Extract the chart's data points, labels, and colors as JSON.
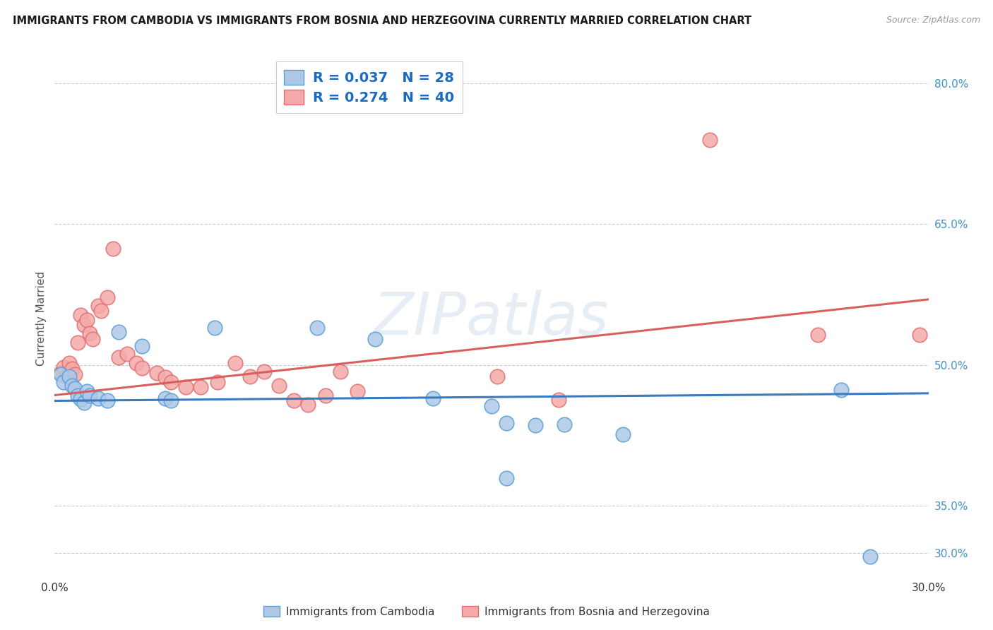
{
  "title": "IMMIGRANTS FROM CAMBODIA VS IMMIGRANTS FROM BOSNIA AND HERZEGOVINA CURRENTLY MARRIED CORRELATION CHART",
  "source": "Source: ZipAtlas.com",
  "ylabel": "Currently Married",
  "xlim": [
    0.0,
    0.3
  ],
  "ylim": [
    0.275,
    0.825
  ],
  "xticks": [
    0.0,
    0.05,
    0.1,
    0.15,
    0.2,
    0.25,
    0.3
  ],
  "xticklabels": [
    "0.0%",
    "",
    "",
    "",
    "",
    "",
    "30.0%"
  ],
  "yticks_right": [
    0.8,
    0.65,
    0.5,
    0.35,
    0.3
  ],
  "ytick_labels_right": [
    "80.0%",
    "65.0%",
    "50.0%",
    "35.0%",
    "30.0%"
  ],
  "grid_color": "#cccccc",
  "watermark": "ZIPatlas",
  "legend_label1": "Immigrants from Cambodia",
  "legend_label2": "Immigrants from Bosnia and Herzegovina",
  "blue_color": "#aec8e8",
  "pink_color": "#f4aaaa",
  "blue_edge_color": "#5a9fd4",
  "pink_edge_color": "#e07070",
  "blue_line_color": "#3a7abf",
  "pink_line_color": "#d95f5f",
  "scatter_blue": [
    [
      0.002,
      0.49
    ],
    [
      0.003,
      0.482
    ],
    [
      0.005,
      0.488
    ],
    [
      0.006,
      0.478
    ],
    [
      0.007,
      0.475
    ],
    [
      0.008,
      0.468
    ],
    [
      0.009,
      0.464
    ],
    [
      0.01,
      0.46
    ],
    [
      0.011,
      0.472
    ],
    [
      0.012,
      0.468
    ],
    [
      0.015,
      0.465
    ],
    [
      0.018,
      0.462
    ],
    [
      0.022,
      0.535
    ],
    [
      0.03,
      0.52
    ],
    [
      0.038,
      0.465
    ],
    [
      0.04,
      0.462
    ],
    [
      0.055,
      0.54
    ],
    [
      0.09,
      0.54
    ],
    [
      0.11,
      0.528
    ],
    [
      0.13,
      0.465
    ],
    [
      0.15,
      0.456
    ],
    [
      0.155,
      0.438
    ],
    [
      0.165,
      0.436
    ],
    [
      0.175,
      0.437
    ],
    [
      0.195,
      0.426
    ],
    [
      0.27,
      0.474
    ],
    [
      0.28,
      0.296
    ],
    [
      0.155,
      0.38
    ]
  ],
  "scatter_pink": [
    [
      0.002,
      0.492
    ],
    [
      0.003,
      0.498
    ],
    [
      0.004,
      0.488
    ],
    [
      0.005,
      0.502
    ],
    [
      0.006,
      0.496
    ],
    [
      0.007,
      0.49
    ],
    [
      0.008,
      0.524
    ],
    [
      0.009,
      0.553
    ],
    [
      0.01,
      0.543
    ],
    [
      0.011,
      0.548
    ],
    [
      0.012,
      0.534
    ],
    [
      0.013,
      0.528
    ],
    [
      0.015,
      0.563
    ],
    [
      0.016,
      0.558
    ],
    [
      0.018,
      0.572
    ],
    [
      0.02,
      0.624
    ],
    [
      0.022,
      0.508
    ],
    [
      0.025,
      0.512
    ],
    [
      0.028,
      0.502
    ],
    [
      0.03,
      0.497
    ],
    [
      0.035,
      0.492
    ],
    [
      0.038,
      0.487
    ],
    [
      0.04,
      0.482
    ],
    [
      0.045,
      0.477
    ],
    [
      0.05,
      0.477
    ],
    [
      0.056,
      0.482
    ],
    [
      0.062,
      0.502
    ],
    [
      0.067,
      0.488
    ],
    [
      0.072,
      0.493
    ],
    [
      0.077,
      0.478
    ],
    [
      0.082,
      0.462
    ],
    [
      0.087,
      0.458
    ],
    [
      0.093,
      0.468
    ],
    [
      0.098,
      0.493
    ],
    [
      0.104,
      0.472
    ],
    [
      0.152,
      0.488
    ],
    [
      0.173,
      0.463
    ],
    [
      0.225,
      0.74
    ],
    [
      0.262,
      0.532
    ],
    [
      0.297,
      0.532
    ]
  ],
  "blue_line_x": [
    0.0,
    0.3
  ],
  "blue_line_y": [
    0.462,
    0.47
  ],
  "pink_line_x": [
    0.0,
    0.3
  ],
  "pink_line_y": [
    0.468,
    0.57
  ]
}
